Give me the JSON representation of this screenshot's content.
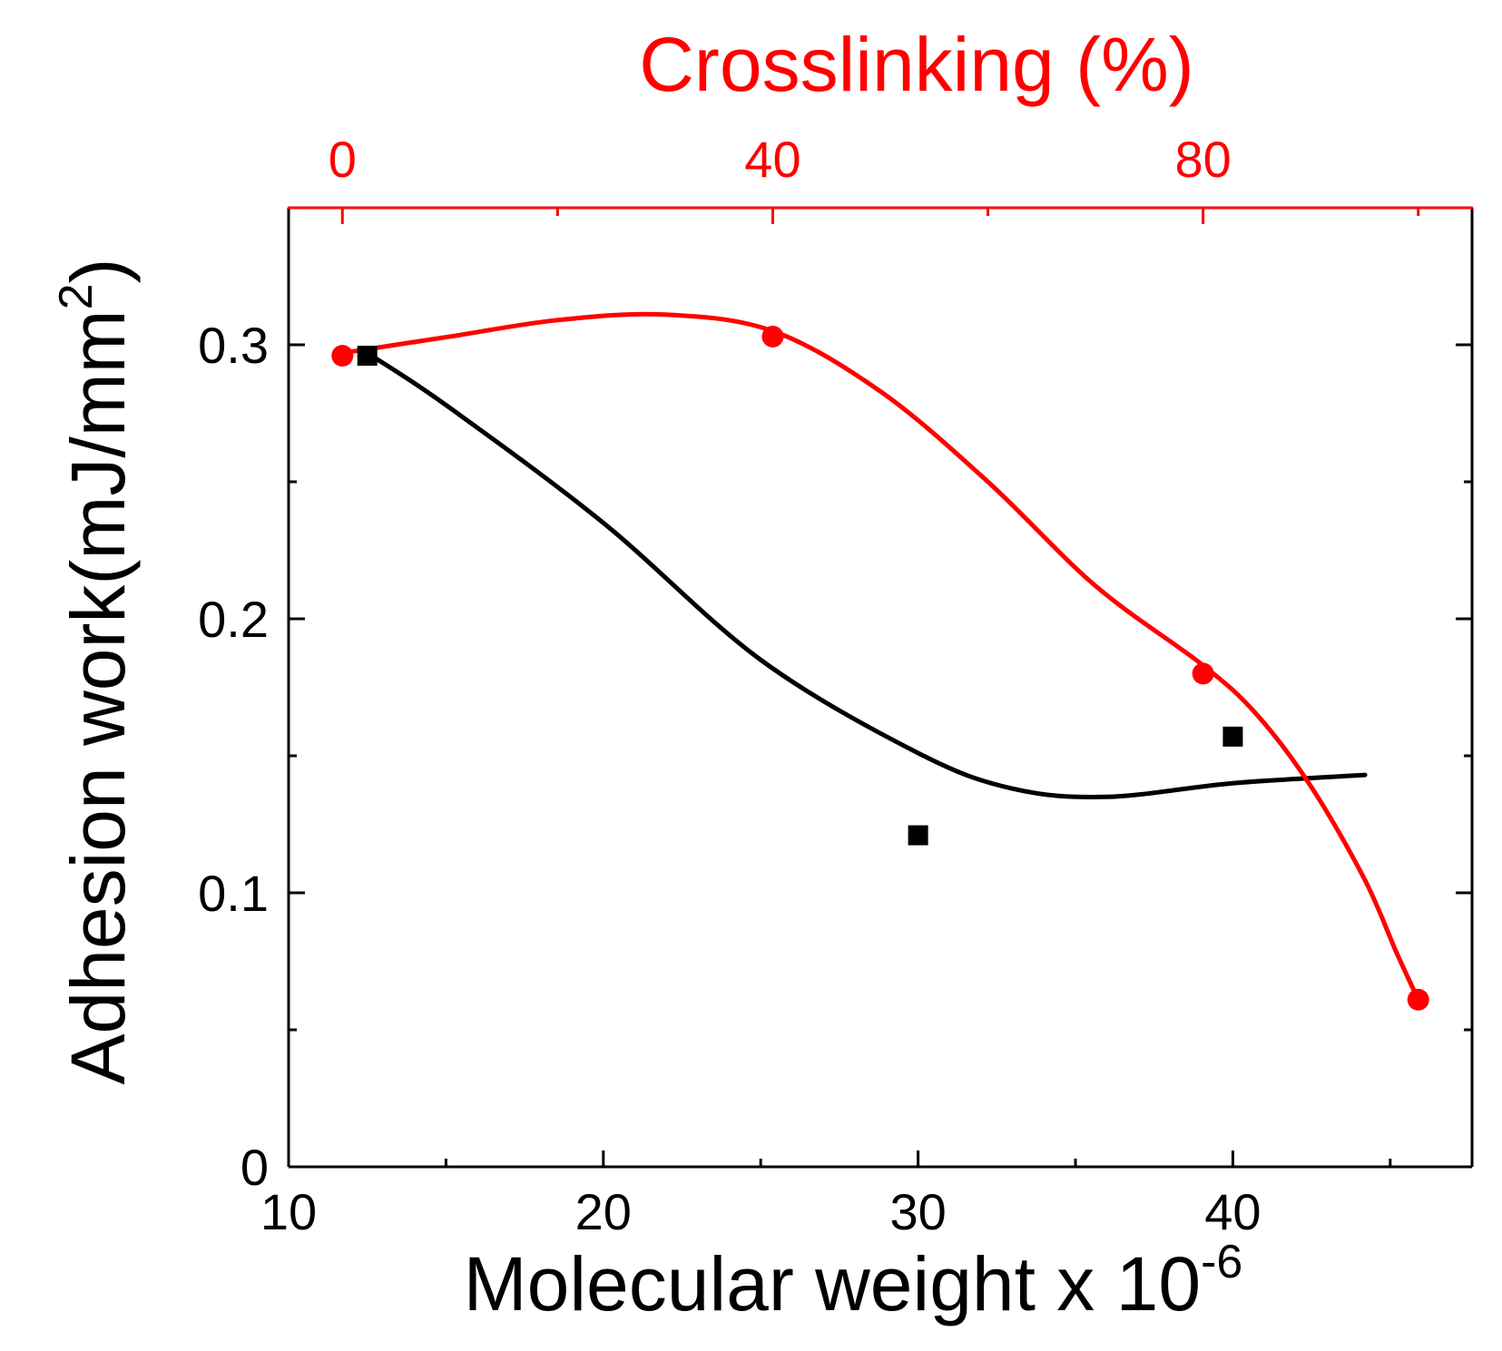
{
  "chart_data": {
    "type": "scatter",
    "title": "",
    "xlabel": "Molecular weight x 10",
    "xlabel_exponent": "-6",
    "ylabel": "Adhesion work(mJ/mm",
    "ylabel_exponent": "2",
    "ylabel_suffix": ")",
    "x2label": "Crosslinking (%)",
    "xlim": [
      10,
      47.6
    ],
    "ylim": [
      0,
      0.35
    ],
    "x2lim": [
      -5,
      105
    ],
    "xticks": [
      10,
      20,
      30,
      40
    ],
    "xtick_labels": [
      "10",
      "20",
      "30",
      "40"
    ],
    "yticks": [
      0,
      0.1,
      0.2,
      0.3
    ],
    "ytick_labels": [
      "0",
      "0.1",
      "0.2",
      "0.3"
    ],
    "x2ticks": [
      0,
      40,
      80
    ],
    "x2tick_labels": [
      "0",
      "40",
      "80"
    ],
    "grid": false,
    "legend": "none",
    "colors": {
      "molecular": "#000000",
      "crosslinking": "#ff0000",
      "axis": "#000000",
      "top_axis": "#ff0000"
    },
    "series": [
      {
        "name": "Molecular weight",
        "axis": "bottom",
        "marker": "square",
        "color": "#000000",
        "points": [
          {
            "x": 12.5,
            "y": 0.296
          },
          {
            "x": 30.0,
            "y": 0.121
          },
          {
            "x": 40.0,
            "y": 0.157
          }
        ],
        "fit": [
          {
            "x": 12.5,
            "y": 0.297
          },
          {
            "x": 15,
            "y": 0.278
          },
          {
            "x": 20,
            "y": 0.235
          },
          {
            "x": 25,
            "y": 0.185
          },
          {
            "x": 30,
            "y": 0.151
          },
          {
            "x": 33,
            "y": 0.138
          },
          {
            "x": 36,
            "y": 0.135
          },
          {
            "x": 40,
            "y": 0.14
          },
          {
            "x": 44.2,
            "y": 0.143
          }
        ]
      },
      {
        "name": "Crosslinking",
        "axis": "top",
        "marker": "circle",
        "color": "#ff0000",
        "points": [
          {
            "x": 0,
            "y": 0.296
          },
          {
            "x": 40,
            "y": 0.303
          },
          {
            "x": 80,
            "y": 0.18
          },
          {
            "x": 100,
            "y": 0.061
          }
        ],
        "fit": [
          {
            "x": 0,
            "y": 0.297
          },
          {
            "x": 10,
            "y": 0.303
          },
          {
            "x": 20,
            "y": 0.309
          },
          {
            "x": 30,
            "y": 0.311
          },
          {
            "x": 40,
            "y": 0.305
          },
          {
            "x": 50,
            "y": 0.283
          },
          {
            "x": 60,
            "y": 0.25
          },
          {
            "x": 70,
            "y": 0.212
          },
          {
            "x": 80,
            "y": 0.183
          },
          {
            "x": 85,
            "y": 0.165
          },
          {
            "x": 90,
            "y": 0.139
          },
          {
            "x": 95,
            "y": 0.105
          },
          {
            "x": 98,
            "y": 0.078
          },
          {
            "x": 100,
            "y": 0.061
          }
        ]
      }
    ]
  }
}
